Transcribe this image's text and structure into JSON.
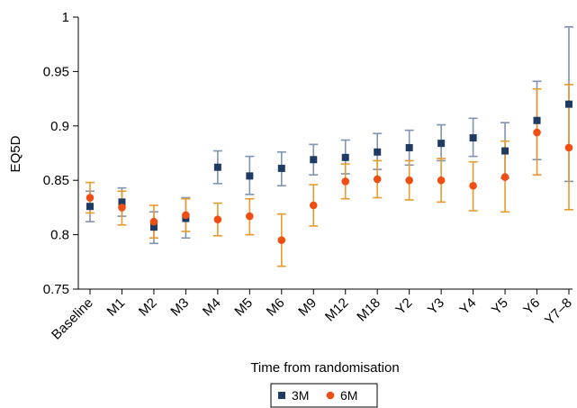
{
  "chart_data": {
    "type": "scatter",
    "title": "",
    "xlabel": "Time from randomisation",
    "ylabel": "EQ5D",
    "ylim": [
      0.75,
      1.0
    ],
    "yticks": [
      0.75,
      0.8,
      0.85,
      0.9,
      0.95,
      1.0
    ],
    "ytick_labels": [
      "0.75",
      "0.8",
      "0.85",
      "0.9",
      "0.95",
      "1"
    ],
    "grid": false,
    "legend_position": "bottom",
    "categories": [
      "Baseline",
      "M1",
      "M2",
      "M3",
      "M4",
      "M5",
      "M6",
      "M9",
      "M12",
      "M18",
      "Y2",
      "Y3",
      "Y4",
      "Y5",
      "Y6",
      "Y7–8"
    ],
    "series": [
      {
        "name": "3M",
        "marker": "square",
        "color": "#1f3b63",
        "error_color": "#7f93b2",
        "values": [
          0.826,
          0.83,
          0.807,
          0.815,
          0.862,
          0.854,
          0.861,
          0.869,
          0.871,
          0.876,
          0.88,
          0.884,
          0.889,
          0.877,
          0.905,
          0.92
        ],
        "lower": [
          0.812,
          0.817,
          0.792,
          0.797,
          0.847,
          0.837,
          0.845,
          0.855,
          0.856,
          0.86,
          0.864,
          0.868,
          0.872,
          0.852,
          0.869,
          0.849
        ],
        "upper": [
          0.84,
          0.843,
          0.821,
          0.834,
          0.877,
          0.872,
          0.876,
          0.883,
          0.887,
          0.893,
          0.896,
          0.901,
          0.907,
          0.903,
          0.941,
          0.991
        ]
      },
      {
        "name": "6M",
        "marker": "circle",
        "color": "#f04e12",
        "error_color": "#e89a2c",
        "values": [
          0.834,
          0.825,
          0.812,
          0.818,
          0.814,
          0.817,
          0.795,
          0.827,
          0.849,
          0.851,
          0.85,
          0.85,
          0.845,
          0.853,
          0.894,
          0.88
        ],
        "lower": [
          0.82,
          0.809,
          0.797,
          0.803,
          0.799,
          0.8,
          0.771,
          0.808,
          0.833,
          0.834,
          0.832,
          0.83,
          0.822,
          0.821,
          0.855,
          0.823
        ],
        "upper": [
          0.848,
          0.84,
          0.827,
          0.833,
          0.829,
          0.833,
          0.819,
          0.846,
          0.865,
          0.868,
          0.868,
          0.87,
          0.867,
          0.886,
          0.934,
          0.938
        ]
      }
    ]
  }
}
